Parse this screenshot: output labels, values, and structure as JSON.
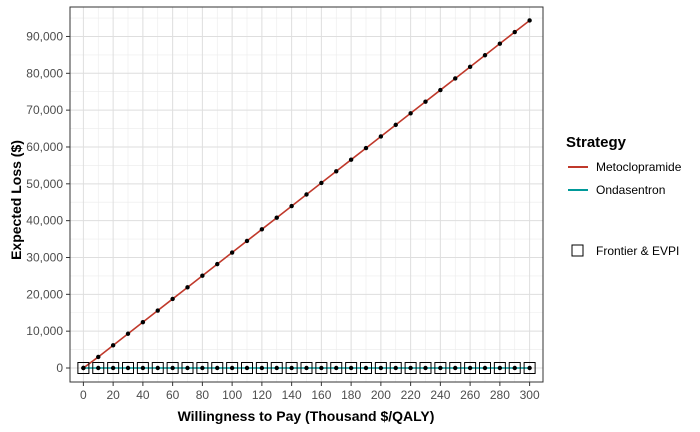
{
  "chart_data": {
    "type": "line",
    "xlabel": "Willingness to Pay (Thousand $/QALY)",
    "ylabel": "Expected Loss ($)",
    "xlim": [
      -9,
      309
    ],
    "ylim": [
      -3800,
      98000
    ],
    "xticks": [
      0,
      20,
      40,
      60,
      80,
      100,
      120,
      140,
      160,
      180,
      200,
      220,
      240,
      260,
      280,
      300
    ],
    "xtick_labels": [
      "0",
      "20",
      "40",
      "60",
      "80",
      "100",
      "120",
      "140",
      "160",
      "180",
      "200",
      "220",
      "240",
      "260",
      "280",
      "300"
    ],
    "yticks": [
      0,
      10000,
      20000,
      30000,
      40000,
      50000,
      60000,
      70000,
      80000,
      90000
    ],
    "ytick_labels": [
      "0",
      "10,000",
      "20,000",
      "30,000",
      "40,000",
      "50,000",
      "60,000",
      "70,000",
      "80,000",
      "90,000"
    ],
    "grid": true,
    "legend_position": "right",
    "legend": {
      "title": "Strategy",
      "entries": [
        "Metoclopramide",
        "Ondasentron"
      ],
      "frontier_label": "Frontier & EVPI"
    },
    "x": [
      0,
      10,
      20,
      30,
      40,
      50,
      60,
      70,
      80,
      90,
      100,
      110,
      120,
      130,
      140,
      150,
      160,
      170,
      180,
      190,
      200,
      210,
      220,
      230,
      240,
      250,
      260,
      270,
      280,
      290,
      300
    ],
    "series": [
      {
        "name": "Metoclopramide",
        "color": "#c0392b",
        "values": [
          0,
          3000,
          6150,
          9300,
          12450,
          15600,
          18750,
          21900,
          25050,
          28200,
          31350,
          34500,
          37650,
          40800,
          43950,
          47100,
          50250,
          53400,
          56550,
          59700,
          62850,
          66000,
          69150,
          72300,
          75450,
          78600,
          81750,
          84900,
          88050,
          91200,
          94350
        ]
      },
      {
        "name": "Ondasentron",
        "color": "#009999",
        "values": [
          0,
          0,
          0,
          0,
          0,
          0,
          0,
          0,
          0,
          0,
          0,
          0,
          0,
          0,
          0,
          0,
          0,
          0,
          0,
          0,
          0,
          0,
          0,
          0,
          0,
          0,
          0,
          0,
          0,
          0,
          0
        ]
      }
    ],
    "frontier": {
      "x": [
        0,
        10,
        20,
        30,
        40,
        50,
        60,
        70,
        80,
        90,
        100,
        110,
        120,
        130,
        140,
        150,
        160,
        170,
        180,
        190,
        200,
        210,
        220,
        230,
        240,
        250,
        260,
        270,
        280,
        290,
        300
      ],
      "values": [
        0,
        0,
        0,
        0,
        0,
        0,
        0,
        0,
        0,
        0,
        0,
        0,
        0,
        0,
        0,
        0,
        0,
        0,
        0,
        0,
        0,
        0,
        0,
        0,
        0,
        0,
        0,
        0,
        0,
        0,
        0
      ]
    }
  }
}
